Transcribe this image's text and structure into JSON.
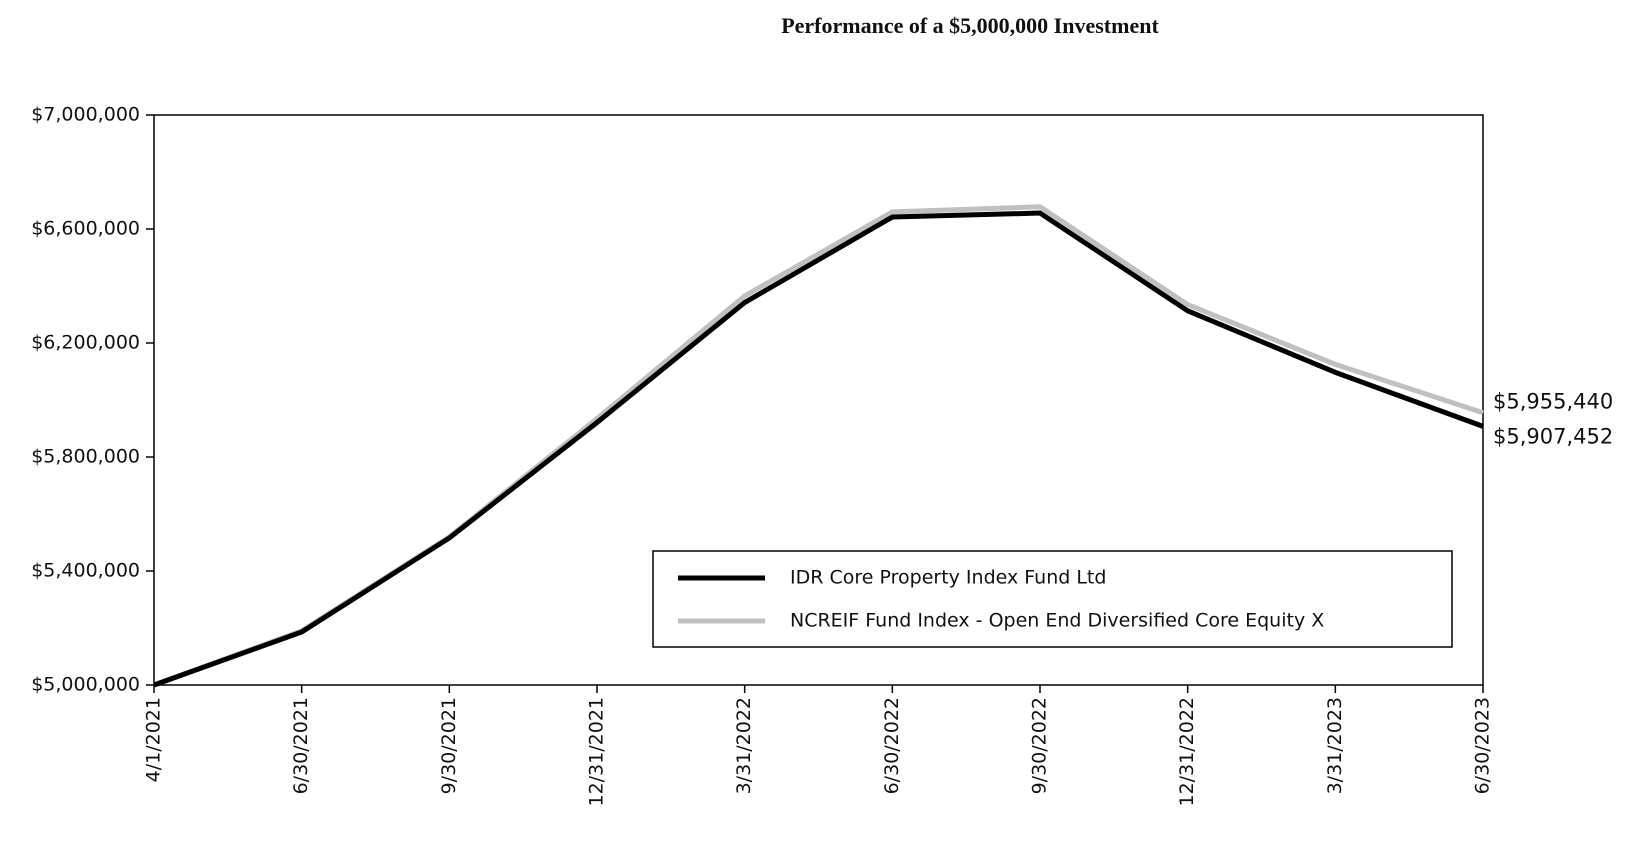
{
  "chart_data": {
    "type": "line",
    "title": "Performance of a $5,000,000 Investment",
    "categories": [
      "4/1/2021",
      "6/30/2021",
      "9/30/2021",
      "12/31/2021",
      "3/31/2022",
      "6/30/2022",
      "9/30/2022",
      "12/31/2022",
      "3/31/2023",
      "6/30/2023"
    ],
    "series": [
      {
        "name": "IDR Core Property Index Fund Ltd",
        "color": "#000000",
        "values": [
          5000000,
          5186000,
          5516000,
          5921000,
          6342000,
          6642000,
          6656000,
          6313000,
          6097000,
          5907452
        ],
        "value_labels": [
          null,
          null,
          null,
          null,
          null,
          null,
          null,
          null,
          null,
          "$5,907,452"
        ]
      },
      {
        "name": "NCREIF Fund Index - Open End Diversified Core Equity X",
        "color": "#c0c0c0",
        "values": [
          5000000,
          5190000,
          5520000,
          5935000,
          6365000,
          6660000,
          6678000,
          6335000,
          6125000,
          5955440
        ],
        "value_labels": [
          null,
          null,
          null,
          null,
          null,
          null,
          null,
          null,
          null,
          "$5,955,440"
        ]
      }
    ],
    "ylim": [
      5000000,
      7000000
    ],
    "yticks": [
      {
        "value": 5000000,
        "label": "$5,000,000"
      },
      {
        "value": 5400000,
        "label": "$5,400,000"
      },
      {
        "value": 5800000,
        "label": "$5,800,000"
      },
      {
        "value": 6200000,
        "label": "$6,200,000"
      },
      {
        "value": 6600000,
        "label": "$6,600,000"
      },
      {
        "value": 7000000,
        "label": "$7,000,000"
      }
    ],
    "grid": false,
    "legend": "lower right"
  }
}
